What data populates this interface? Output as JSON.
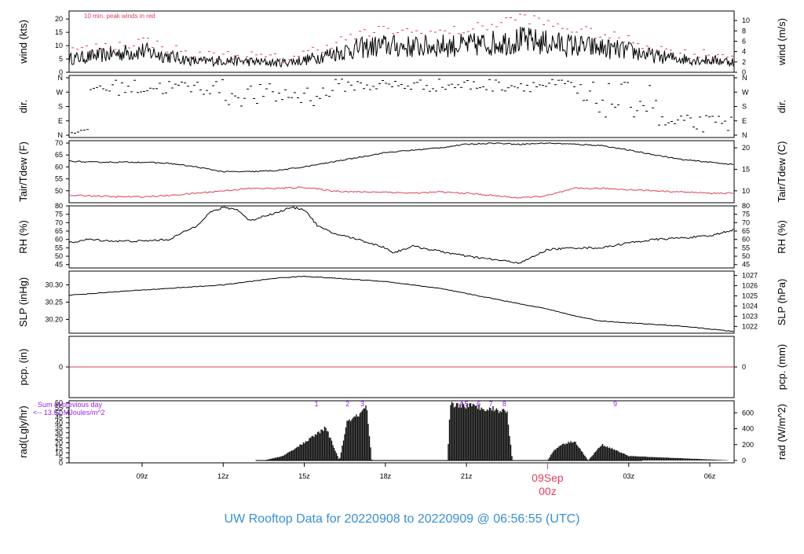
{
  "title": "UW Rooftop Data for 20220908  to  20220909 @ 06:56:55  (UTC)",
  "colors": {
    "title": "#3a8fd0",
    "red": "#e0405a",
    "purple": "#a020f0",
    "black": "#000000"
  },
  "time_axis": {
    "range_hours": [
      6.3,
      30.9
    ],
    "ticks": [
      {
        "h": 9,
        "label": "09z"
      },
      {
        "h": 12,
        "label": "12z"
      },
      {
        "h": 15,
        "label": "15z"
      },
      {
        "h": 18,
        "label": "18z"
      },
      {
        "h": 21,
        "label": "21z"
      },
      {
        "h": 27,
        "label": "03z"
      },
      {
        "h": 30,
        "label": "06z"
      }
    ],
    "day_label": {
      "h": 24,
      "line1": "09Sep",
      "line2": "00z"
    }
  },
  "panels": {
    "wind": {
      "ylabel_left": "wind (kts)",
      "ylabel_right": "wind (m/s)",
      "note": "10 min. peak winds in red",
      "left_ticks": [
        0,
        5,
        10,
        15,
        20
      ],
      "right_ticks": [
        0,
        2,
        4,
        6,
        8,
        10
      ]
    },
    "dir": {
      "ylabel_left": "dir.",
      "ylabel_right": "dir.",
      "ticks": [
        "N",
        "E",
        "S",
        "W",
        "N"
      ]
    },
    "temp": {
      "ylabel_left": "Tair/Tdew (F)",
      "ylabel_right": "Tair/Tdew (C)",
      "left_ticks": [
        50,
        55,
        60,
        65,
        70
      ],
      "right_ticks": [
        10,
        15,
        20
      ]
    },
    "rh": {
      "ylabel_left": "RH (%)",
      "ylabel_right": "RH (%)",
      "ticks": [
        45,
        50,
        55,
        60,
        65,
        70,
        75,
        80
      ]
    },
    "slp": {
      "ylabel_left": "SLP (inHg)",
      "ylabel_right": "SLP (hPa)",
      "left_ticks": [
        "30.20",
        "30.25",
        "30.30"
      ],
      "right_ticks": [
        1022,
        1023,
        1024,
        1025,
        1026,
        1027
      ]
    },
    "pcp": {
      "ylabel_left": "pcp. (in)",
      "ylabel_right": "pcp. (mm)",
      "left_ticks": [
        0
      ],
      "right_ticks": [
        0
      ]
    },
    "rad": {
      "ylabel_left": "rad(Lgly/hr)",
      "ylabel_right": "rad (W/m^2)",
      "left_ticks": [
        0,
        5,
        10,
        15,
        20,
        25,
        30,
        35,
        40,
        45,
        50,
        55,
        60
      ],
      "right_ticks": [
        0,
        200,
        400,
        600
      ],
      "sum_line1": "Sum of previous day",
      "sum_line2": "<-- 13.61 MJoules/m^2",
      "markers": [
        {
          "h": 15.45,
          "label": "1"
        },
        {
          "h": 16.6,
          "label": "2"
        },
        {
          "h": 17.15,
          "label": "3"
        },
        {
          "h": 20.8,
          "label": "4"
        },
        {
          "h": 21.0,
          "label": "5"
        },
        {
          "h": 21.45,
          "label": "6"
        },
        {
          "h": 21.9,
          "label": "7"
        },
        {
          "h": 22.4,
          "label": "8"
        },
        {
          "h": 26.5,
          "label": "9"
        }
      ]
    }
  },
  "chart_data": {
    "type": "line",
    "series": [
      {
        "name": "wind speed (kts)",
        "x_hours": [
          6.3,
          8,
          9,
          10,
          11,
          12,
          13,
          14,
          15,
          16,
          17,
          18,
          19,
          20,
          21,
          22,
          23,
          24,
          25,
          26,
          27,
          28,
          29,
          30,
          30.9
        ],
        "values": [
          5,
          7,
          8,
          6,
          4,
          4.5,
          4,
          3.5,
          4.5,
          7,
          9,
          10,
          9.5,
          10,
          10,
          11,
          12,
          11,
          10,
          9,
          8,
          6,
          5,
          4.5,
          4
        ]
      },
      {
        "name": "10 min. peak winds",
        "x_hours": [
          6.3,
          8,
          9,
          10,
          11,
          12,
          13,
          14,
          15,
          16,
          17,
          18,
          19,
          20,
          21,
          22,
          23,
          24,
          25,
          26,
          27,
          28,
          29,
          30,
          30.9
        ],
        "values": [
          8,
          10,
          12,
          9,
          6,
          6.5,
          6,
          5,
          7,
          11,
          14,
          16,
          15,
          15,
          16,
          18,
          21,
          18,
          16,
          14,
          12,
          9,
          7,
          7,
          6
        ]
      },
      {
        "name": "Tair (F)",
        "x_hours": [
          6.3,
          7,
          8,
          9,
          10,
          11,
          12,
          13,
          14,
          15,
          16,
          17,
          18,
          19,
          20,
          21,
          22,
          23,
          24,
          25,
          26,
          27,
          28,
          29,
          30,
          30.9
        ],
        "values": [
          62.5,
          62,
          62,
          62,
          61.5,
          60,
          58,
          58,
          58.5,
          60,
          62,
          64,
          66,
          67,
          68,
          69.5,
          70,
          69.5,
          70,
          69.5,
          69,
          67,
          65,
          63,
          62,
          61
        ]
      },
      {
        "name": "Tdew (F)",
        "x_hours": [
          6.3,
          7,
          8,
          9,
          10,
          11,
          12,
          13,
          14,
          15,
          16,
          17,
          18,
          19,
          20,
          21,
          22,
          23,
          24,
          25,
          26,
          27,
          28,
          29,
          30,
          30.9
        ],
        "values": [
          48,
          48,
          47.5,
          47.5,
          48,
          49,
          50,
          51,
          51,
          51.5,
          50,
          49.5,
          49.5,
          49,
          49.5,
          49,
          48,
          47,
          48,
          51,
          51,
          50.5,
          50,
          49.5,
          49,
          49
        ]
      },
      {
        "name": "RH (%)",
        "x_hours": [
          6.3,
          7,
          8,
          9,
          10,
          11,
          11.5,
          12,
          12.5,
          13,
          13.5,
          14,
          14.5,
          15,
          15.5,
          16,
          17,
          18,
          18.3,
          19,
          20,
          21,
          22,
          23,
          24,
          25,
          26,
          27,
          28,
          29,
          30,
          30.9
        ],
        "values": [
          58,
          60,
          59,
          59,
          60,
          68,
          76,
          79,
          78,
          71,
          74,
          76,
          79,
          78,
          68,
          64,
          60,
          55,
          52,
          56,
          53,
          50,
          48,
          46,
          54,
          55,
          55,
          58,
          60,
          61,
          62,
          66
        ]
      },
      {
        "name": "SLP (inHg)",
        "x_hours": [
          6.3,
          8,
          10,
          12,
          13,
          14,
          15,
          16,
          17,
          18,
          19,
          20,
          21,
          22,
          23,
          24,
          25,
          26,
          27,
          28,
          29,
          30,
          30.9
        ],
        "values": [
          30.27,
          30.28,
          30.29,
          30.3,
          30.31,
          30.32,
          30.325,
          30.32,
          30.315,
          30.31,
          30.3,
          30.29,
          30.275,
          30.26,
          30.245,
          30.23,
          30.21,
          30.195,
          30.19,
          30.185,
          30.18,
          30.172,
          30.165
        ]
      },
      {
        "name": "pcp. (in)",
        "x_hours": [
          6.3,
          30.9
        ],
        "values": [
          0,
          0
        ]
      },
      {
        "name": "rad (Lgly/hr)",
        "x_hours": [
          6.3,
          13.5,
          14.2,
          15.0,
          15.8,
          16.3,
          16.6,
          17.0,
          17.3,
          17.5,
          19.0,
          20.3,
          20.4,
          21.0,
          21.5,
          22.0,
          22.5,
          22.7,
          24.0,
          24.2,
          24.5,
          25.0,
          25.5,
          26.0,
          26.5,
          27.0,
          30.9
        ],
        "values": [
          0,
          0,
          5,
          20,
          37,
          0,
          45,
          50,
          60,
          0,
          0,
          0,
          63,
          62,
          60,
          58,
          55,
          0,
          0,
          10,
          18,
          22,
          0,
          18,
          12,
          5,
          0
        ]
      }
    ]
  }
}
